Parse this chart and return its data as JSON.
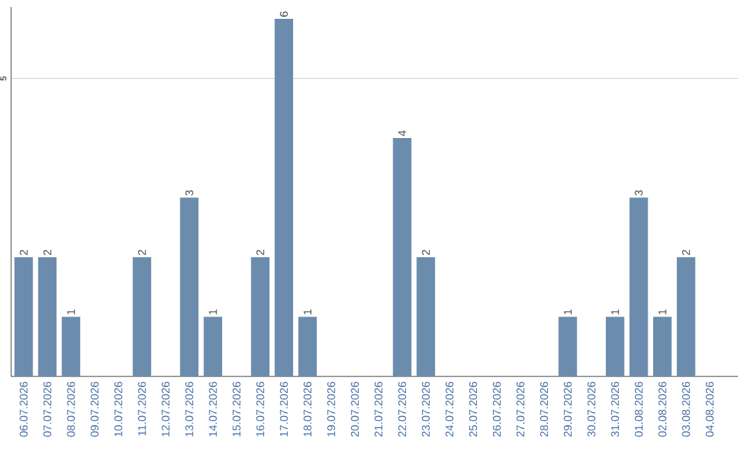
{
  "chart_data": {
    "type": "bar",
    "categories": [
      "06.07.2026",
      "07.07.2026",
      "08.07.2026",
      "09.07.2026",
      "10.07.2026",
      "11.07.2026",
      "12.07.2026",
      "13.07.2026",
      "14.07.2026",
      "15.07.2026",
      "16.07.2026",
      "17.07.2026",
      "18.07.2026",
      "19.07.2026",
      "20.07.2026",
      "21.07.2026",
      "22.07.2026",
      "23.07.2026",
      "24.07.2026",
      "25.07.2026",
      "26.07.2026",
      "27.07.2026",
      "28.07.2026",
      "29.07.2026",
      "30.07.2026",
      "31.07.2026",
      "01.08.2026",
      "02.08.2026",
      "03.08.2026",
      "04.08.2026"
    ],
    "values": [
      2,
      2,
      1,
      0,
      0,
      2,
      0,
      3,
      1,
      0,
      2,
      6,
      1,
      0,
      0,
      0,
      4,
      2,
      0,
      0,
      0,
      0,
      0,
      1,
      0,
      1,
      3,
      1,
      2,
      0
    ],
    "value_labels": [
      "2",
      "2",
      "1",
      null,
      null,
      "2",
      null,
      "3",
      "1",
      null,
      "2",
      "6",
      "1",
      null,
      null,
      null,
      "4",
      "2",
      null,
      null,
      null,
      null,
      null,
      "1",
      null,
      "1",
      "3",
      "1",
      "2",
      null
    ],
    "color": "#6b8cad",
    "ylim": [
      0,
      6.2
    ],
    "yticks": [
      5
    ],
    "grid": "y"
  }
}
